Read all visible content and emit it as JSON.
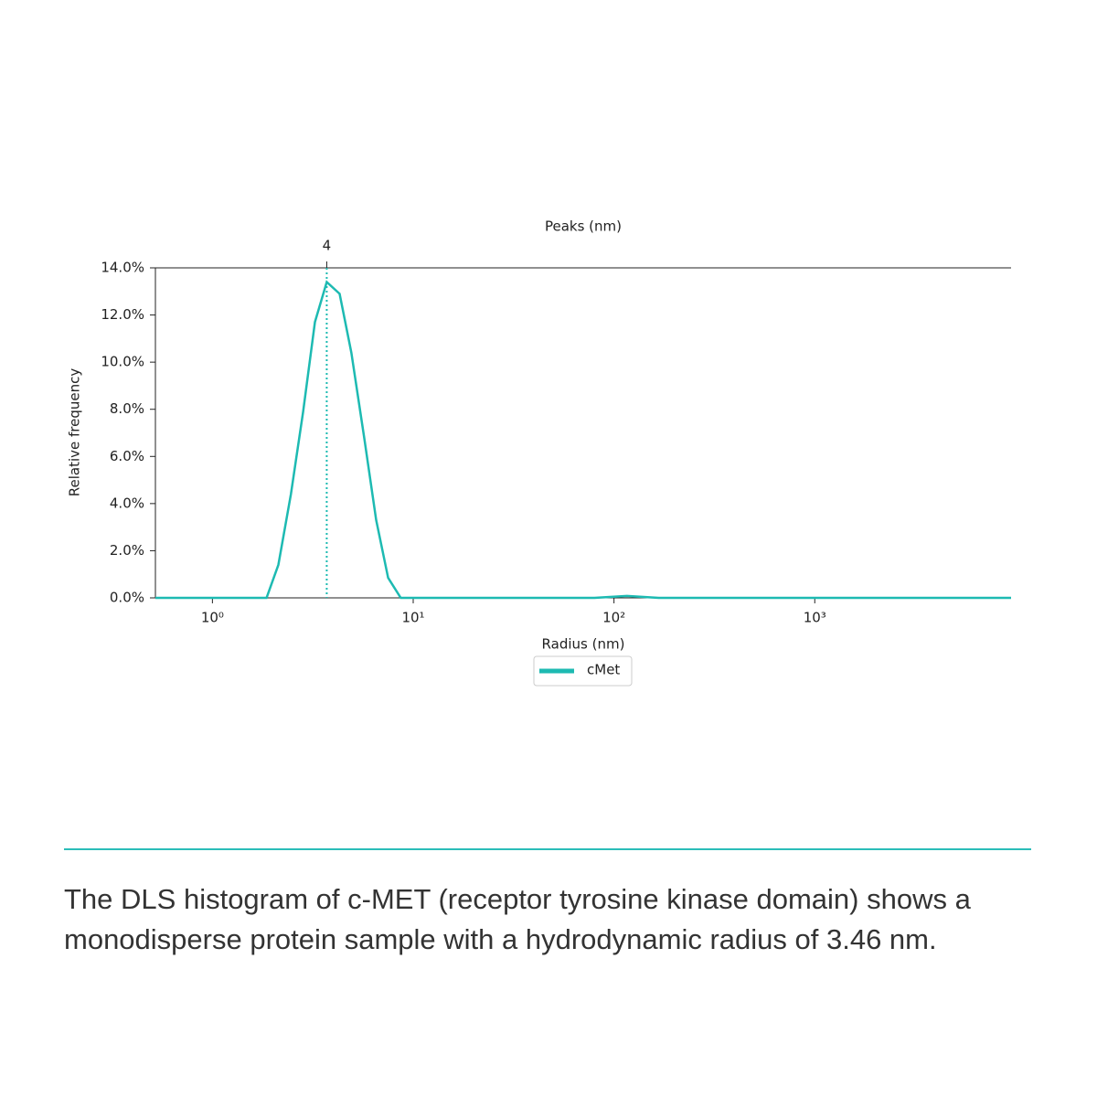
{
  "chart_data": {
    "type": "line",
    "title": "Peaks (nm)",
    "x_label": "Radius (nm)",
    "y_label": "Relative frequency",
    "log_x": true,
    "xlim": [
      0.52,
      9500
    ],
    "ylim": [
      0,
      14
    ],
    "xticks": [
      {
        "value": 1,
        "label": "10⁰"
      },
      {
        "value": 10,
        "label": "10¹"
      },
      {
        "value": 100,
        "label": "10²"
      },
      {
        "value": 1000,
        "label": "10³"
      }
    ],
    "yticks": [
      {
        "value": 0,
        "label": "0.0%"
      },
      {
        "value": 2,
        "label": "2.0%"
      },
      {
        "value": 4,
        "label": "4.0%"
      },
      {
        "value": 6,
        "label": "6.0%"
      },
      {
        "value": 8,
        "label": "8.0%"
      },
      {
        "value": 10,
        "label": "10.0%"
      },
      {
        "value": 12,
        "label": "12.0%"
      },
      {
        "value": 14,
        "label": "14.0%"
      }
    ],
    "peaks": [
      {
        "value": 3.71,
        "label": "4"
      }
    ],
    "series": [
      {
        "name": "cMet",
        "color": "#1dbab2",
        "x": [
          0.52,
          1.86,
          2.13,
          2.46,
          2.83,
          3.24,
          3.71,
          4.3,
          4.92,
          5.7,
          6.54,
          7.5,
          8.67,
          80,
          116,
          167,
          9500
        ],
        "values": [
          0,
          0,
          1.4,
          4.4,
          7.9,
          11.7,
          13.4,
          12.9,
          10.4,
          6.8,
          3.3,
          0.85,
          0,
          0,
          0.08,
          0,
          0
        ]
      }
    ]
  },
  "caption": "The DLS histogram of c-MET (receptor tyrosine kinase domain) shows a monodisperse protein sample with a hydrodynamic radius of 3.46 nm."
}
